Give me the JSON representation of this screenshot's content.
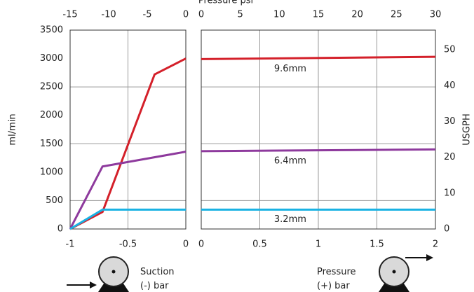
{
  "chart_data": [
    {
      "type": "line",
      "x2label": "Pressure psi",
      "ylabel": "ml/min",
      "xlabel": [
        "Suction",
        "(-) bar"
      ],
      "xlim": [
        -1,
        0
      ],
      "xticks": [
        -1,
        -0.5,
        0
      ],
      "x2lim": [
        -15,
        0
      ],
      "x2ticks": [
        -15,
        -10,
        -5,
        0
      ],
      "ylim": [
        0,
        3500
      ],
      "yticks": [
        0,
        500,
        1000,
        1500,
        2000,
        2500,
        3000,
        3500
      ],
      "grid": true,
      "ygrid": [
        500,
        1500,
        2500
      ],
      "series": [
        {
          "color": "#d4202a",
          "x": [
            -1,
            -0.72,
            -0.27,
            0
          ],
          "values": [
            0,
            300,
            2720,
            3000
          ]
        },
        {
          "color": "#8e3a9d",
          "x": [
            -1,
            -0.72,
            0
          ],
          "values": [
            0,
            1100,
            1360
          ]
        },
        {
          "color": "#1ab2e3",
          "x": [
            -1,
            -0.72,
            0
          ],
          "values": [
            0,
            340,
            340
          ]
        }
      ]
    },
    {
      "type": "line",
      "xlabel": [
        "Pressure",
        "(+) bar"
      ],
      "y2label": "USGPH",
      "xlim": [
        0,
        2
      ],
      "xticks": [
        0,
        0.5,
        1,
        1.5,
        2
      ],
      "x2lim": [
        0,
        30
      ],
      "x2ticks": [
        0,
        5,
        10,
        15,
        20,
        25,
        30
      ],
      "ylim": [
        0,
        3500
      ],
      "y2lim": [
        0,
        55.5
      ],
      "y2ticks": [
        0,
        10,
        20,
        30,
        40,
        50
      ],
      "grid": true,
      "ygrid": [
        500,
        1500,
        2500
      ],
      "series": [
        {
          "name": "9.6mm",
          "color": "#d4202a",
          "x": [
            0,
            2
          ],
          "values": [
            2990,
            3030
          ]
        },
        {
          "name": "6.4mm",
          "color": "#8e3a9d",
          "x": [
            0,
            2
          ],
          "values": [
            1370,
            1400
          ]
        },
        {
          "name": "3.2mm",
          "color": "#1ab2e3",
          "x": [
            0,
            2
          ],
          "values": [
            340,
            340
          ]
        }
      ]
    }
  ]
}
